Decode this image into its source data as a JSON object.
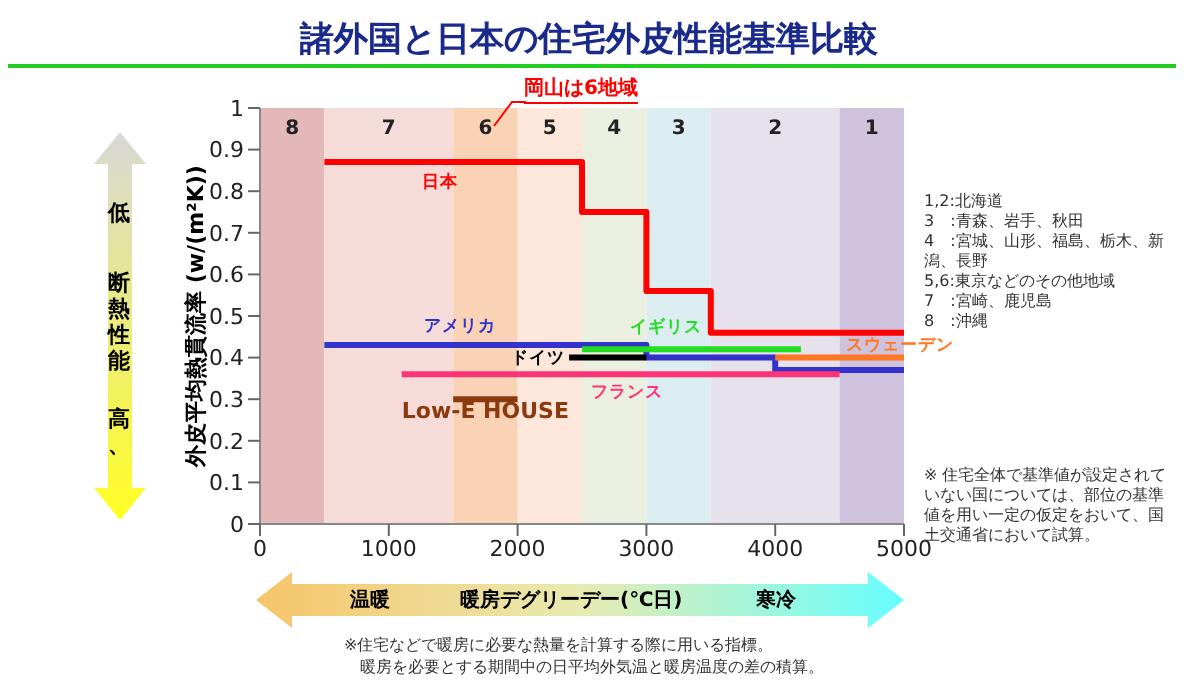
{
  "chart_data": {
    "type": "line",
    "title": "諸外国と日本の住宅外皮性能基準比較",
    "xlabel": "暖房デグリーデー(℃日)",
    "ylabel": "外皮平均熱貫流率 (w/(m²K))",
    "xlim": [
      0,
      5000
    ],
    "xticks": [
      0,
      1000,
      2000,
      3000,
      4000,
      5000
    ],
    "ylim": [
      0,
      1
    ],
    "yticks": [
      0,
      0.1,
      0.2,
      0.3,
      0.4,
      0.5,
      0.6,
      0.7,
      0.8,
      0.9,
      1
    ],
    "grid": false,
    "series": [
      {
        "name": "日本",
        "type": "step",
        "color": "#ff0000",
        "x": [
          500,
          2500,
          3000,
          3500,
          5000
        ],
        "values": [
          0.87,
          0.75,
          0.56,
          0.46,
          0.46
        ]
      },
      {
        "name": "アメリカ",
        "type": "step",
        "color": "#3333cc",
        "x": [
          500,
          3000,
          4000,
          5000
        ],
        "values": [
          0.43,
          0.4,
          0.37,
          0.37
        ]
      },
      {
        "name": "ドイツ",
        "type": "line",
        "color": "#000000",
        "x": [
          2400,
          3000
        ],
        "values": [
          0.4,
          0.4
        ]
      },
      {
        "name": "イギリス",
        "type": "line",
        "color": "#22dd22",
        "x": [
          2500,
          4200
        ],
        "values": [
          0.42,
          0.42
        ]
      },
      {
        "name": "スウェーデン",
        "type": "line",
        "color": "#ff7722",
        "x": [
          4000,
          5000
        ],
        "values": [
          0.4,
          0.4
        ]
      },
      {
        "name": "フランス",
        "type": "line",
        "color": "#ff3377",
        "x": [
          1100,
          4500
        ],
        "values": [
          0.36,
          0.36
        ]
      },
      {
        "name": "Low-E HOUSE",
        "type": "line",
        "color": "#8b3a0f",
        "x": [
          1500,
          2000
        ],
        "values": [
          0.3,
          0.3
        ]
      }
    ],
    "bands": [
      {
        "axis": "x",
        "from": 0,
        "to": 500,
        "label": "8",
        "color": "#e4b8b8"
      },
      {
        "axis": "x",
        "from": 500,
        "to": 1500,
        "label": "7",
        "color": "#f6dcd8"
      },
      {
        "axis": "x",
        "from": 1500,
        "to": 2000,
        "label": "6",
        "color": "#fad3b6"
      },
      {
        "axis": "x",
        "from": 2000,
        "to": 2500,
        "label": "5",
        "color": "#fce7da"
      },
      {
        "axis": "x",
        "from": 2500,
        "to": 3000,
        "label": "4",
        "color": "#eaefdf"
      },
      {
        "axis": "x",
        "from": 3000,
        "to": 3500,
        "label": "3",
        "color": "#dcedf2"
      },
      {
        "axis": "x",
        "from": 3500,
        "to": 4500,
        "label": "2",
        "color": "#e7e1ec"
      },
      {
        "axis": "x",
        "from": 4500,
        "to": 5000,
        "label": "1",
        "color": "#cfc2dd"
      }
    ],
    "annotations": [
      "岡山は6地域",
      "1,2:北海道",
      "3　:青森、岩手、秋田",
      "4　:宮城、山形、福島、栃木、新潟、長野",
      "5,6:東京などのその他地域",
      "7　:宮崎、鹿児島",
      "8　:沖縄",
      "※ 住宅全体で基準値が設定されていない国については、部位の基準値を用い一定の仮定をおいて、国土交通省において試算。",
      "低",
      "断熱性能",
      "高、",
      "温暖",
      "寒冷",
      "※住宅などで暖房に必要な熱量を計算する際に用いる指標。",
      "暖房を必要とする期間中の日平均外気温と暖房温度の差の積算。"
    ]
  }
}
